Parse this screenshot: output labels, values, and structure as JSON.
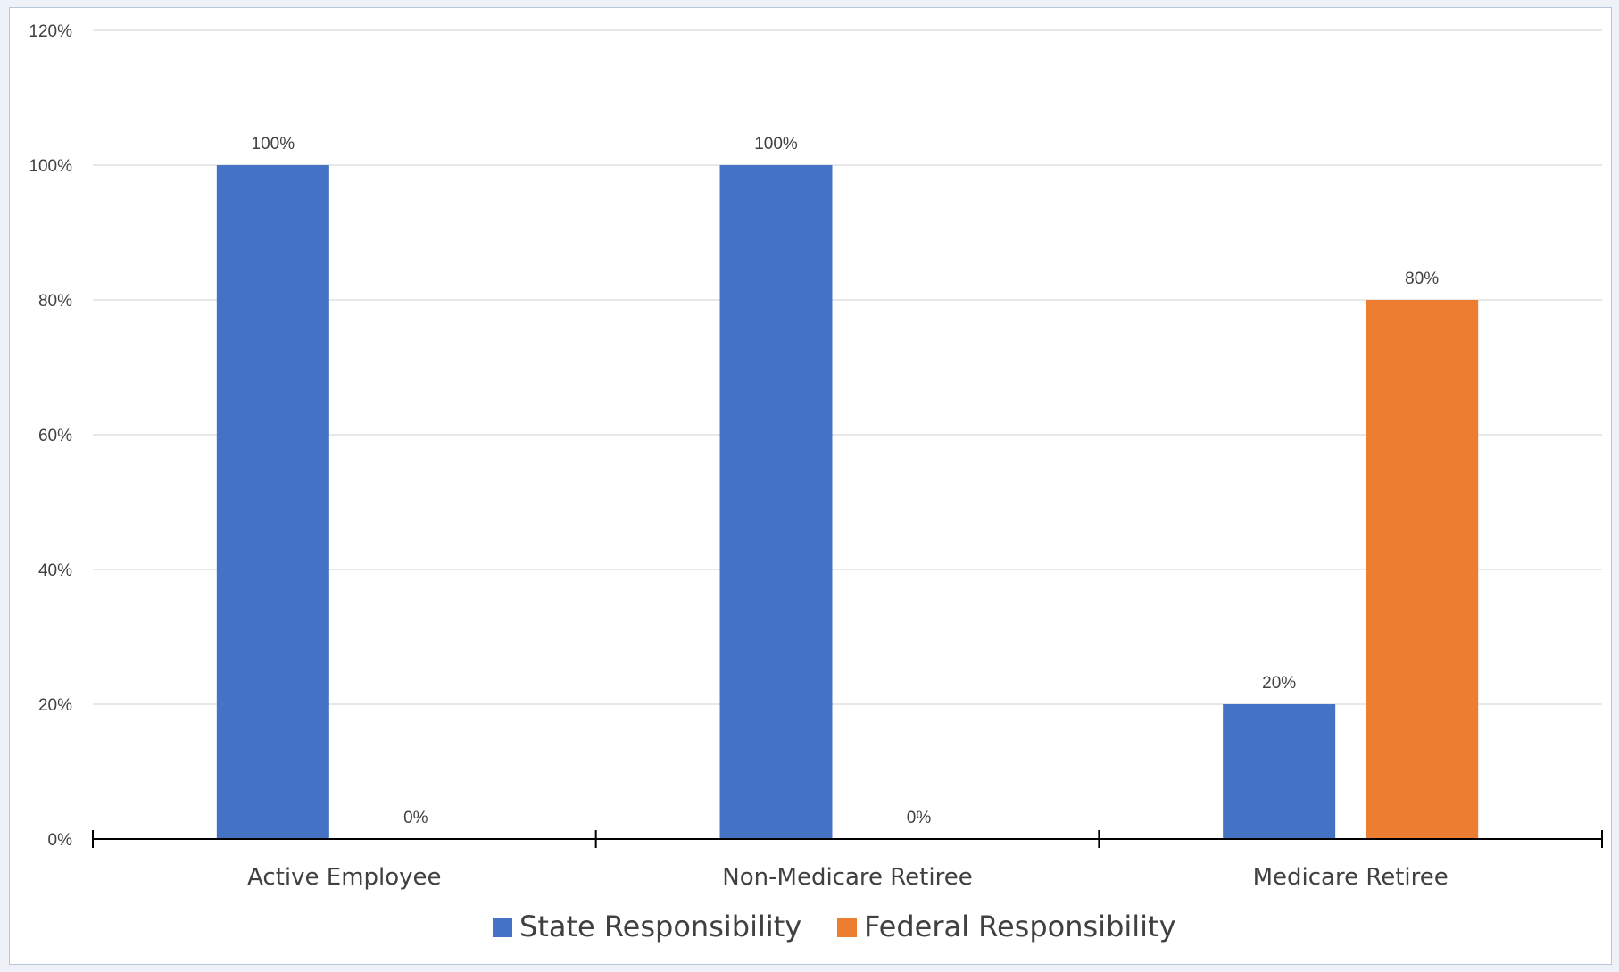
{
  "chart_data": {
    "type": "bar",
    "categories": [
      "Active Employee",
      "Non-Medicare Retiree",
      "Medicare Retiree"
    ],
    "series": [
      {
        "name": "State Responsibility",
        "values": [
          100,
          100,
          20
        ],
        "labels": [
          "100%",
          "100%",
          "20%"
        ],
        "color": "#4472c4"
      },
      {
        "name": "Federal Responsibility",
        "values": [
          0,
          0,
          80
        ],
        "labels": [
          "0%",
          "0%",
          "80%"
        ],
        "color": "#ed7d31"
      }
    ],
    "ylim": [
      0,
      120
    ],
    "y_ticks": [
      0,
      20,
      40,
      60,
      80,
      100,
      120
    ],
    "y_tick_labels": [
      "0%",
      "20%",
      "40%",
      "60%",
      "80%",
      "100%",
      "120%"
    ],
    "grid": true,
    "legend_position": "bottom"
  }
}
